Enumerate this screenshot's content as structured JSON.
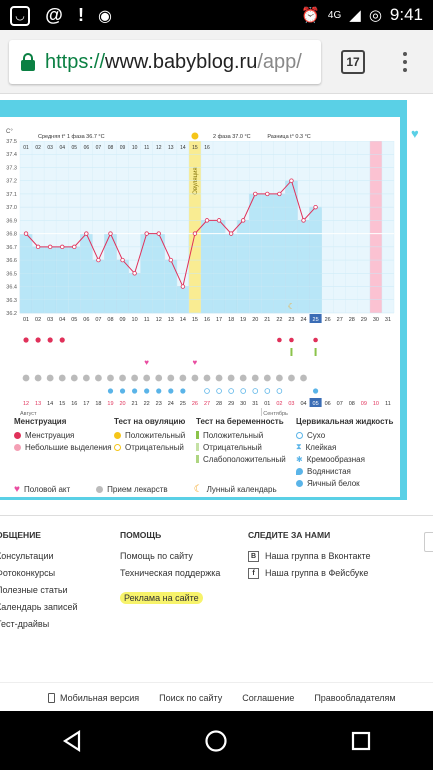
{
  "status_bar": {
    "network": "4G",
    "time": "9:41"
  },
  "browser": {
    "url_scheme": "https://",
    "url_host": "www.babyblog.ru",
    "url_path": "/app/",
    "tab_count": "17"
  },
  "chart_data": {
    "type": "line",
    "title_phase1": "Средняя t° 1 фаза 36.7 °С",
    "title_phase2": "2 фаза 37.0 °С",
    "title_diff": "Разница t° 0.3 °С",
    "ylabel": "С°",
    "y_ticks": [
      "37.5",
      "37.4",
      "37.3",
      "37.2",
      "37.1",
      "37.0",
      "36.9",
      "36.8",
      "36.7",
      "36.6",
      "36.5",
      "36.4",
      "36.3",
      "36.2"
    ],
    "ylim": [
      36.2,
      37.5
    ],
    "ovulation_label": "Овуляция",
    "days": [
      "01",
      "02",
      "03",
      "04",
      "05",
      "06",
      "07",
      "08",
      "09",
      "10",
      "11",
      "12",
      "13",
      "14",
      "15",
      "16",
      "17",
      "18",
      "19",
      "20",
      "21",
      "22",
      "23",
      "24",
      "25",
      "26",
      "27",
      "28",
      "29",
      "30",
      "31"
    ],
    "top_days": [
      "01",
      "02",
      "03",
      "04",
      "05",
      "06",
      "07",
      "08",
      "09",
      "10",
      "11",
      "12",
      "13",
      "14",
      "15",
      "16"
    ],
    "dates_row": [
      "12",
      "13",
      "14",
      "15",
      "16",
      "17",
      "18",
      "19",
      "20",
      "21",
      "22",
      "23",
      "24",
      "25",
      "26",
      "27",
      "28",
      "29",
      "30",
      "31",
      "01",
      "02",
      "03",
      "04",
      "05",
      "06",
      "07",
      "08",
      "09",
      "10",
      "11"
    ],
    "month1": "Август",
    "month2": "Сентябрь",
    "today_label": "05",
    "temperatures": [
      36.8,
      36.7,
      36.7,
      36.7,
      36.7,
      36.8,
      36.6,
      36.8,
      36.6,
      36.5,
      36.8,
      36.8,
      36.6,
      36.4,
      36.8,
      36.9,
      36.9,
      36.8,
      36.9,
      37.1,
      37.1,
      37.1,
      37.2,
      36.9,
      37.0
    ],
    "coverline": 36.8,
    "series": [
      {
        "name": "Средняя t°",
        "values": [
          36.8,
          36.7,
          36.7,
          36.7,
          36.7,
          36.8,
          36.6,
          36.8,
          36.6,
          36.5,
          36.8,
          36.8,
          36.6,
          36.4,
          36.8,
          36.9,
          36.9,
          36.8,
          36.9,
          37.1,
          37.1,
          37.1,
          37.2,
          36.9,
          37.0
        ]
      }
    ]
  },
  "legend": {
    "col1_head": "Менструация",
    "col1": [
      "Менструация",
      "Небольшие выделения"
    ],
    "col2_head": "Тест на овуляцию",
    "col2": [
      "Положительный",
      "Отрицательный"
    ],
    "col3_head": "Тест на беременность",
    "col3": [
      "Положительный",
      "Отрицательный",
      "Слабоположительный"
    ],
    "col4_head": "Цервикальная жидкость",
    "col4": [
      "Сухо",
      "Клейкая",
      "Кремообразная",
      "Водянистая",
      "Яичный белок"
    ],
    "bottom": [
      "Половой акт",
      "Прием лекарств",
      "Лунный календарь"
    ]
  },
  "footer": {
    "col1_head": "ОБЩЕНИЕ",
    "col1": [
      "Консультации",
      "Фотоконкурсы",
      "Полезные статьи",
      "Календарь записей",
      "Тест-драйвы"
    ],
    "col2_head": "ПОМОЩЬ",
    "col2": [
      "Помощь по сайту",
      "Техническая поддержка",
      "Реклама на сайте"
    ],
    "col3_head": "СЛЕДИТЕ ЗА НАМИ",
    "col3": [
      "Наша группа в Вконтакте",
      "Наша группа в Фейсбуке"
    ],
    "bottom": [
      "Мобильная версия",
      "Поиск по сайту",
      "Соглашение",
      "Правообладателям"
    ]
  },
  "colors": {
    "accent": "#5ad0e6",
    "bar": "#b8e6f7",
    "line": "#e0315a",
    "ovulation": "#f9ec92",
    "today": "#fbc2d2"
  }
}
